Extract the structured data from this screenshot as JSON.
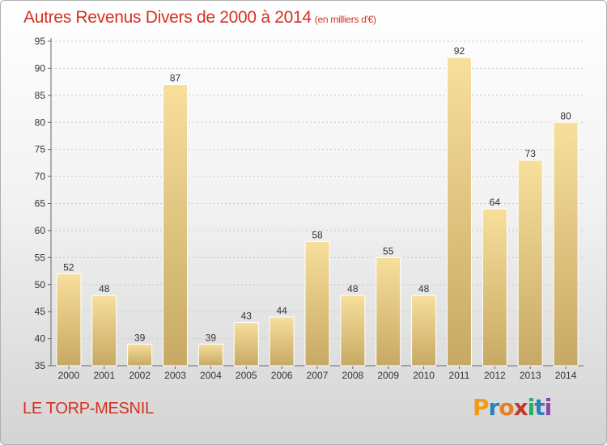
{
  "title": "Autres Revenus Divers de 2000 à 2014",
  "subtitle": "(en milliers d'€)",
  "place": "LE TORP-MESNIL",
  "logo": {
    "text": "Proxiti",
    "letters": [
      {
        "ch": "P",
        "color": "#f39c12"
      },
      {
        "ch": "r",
        "color": "#2980b9"
      },
      {
        "ch": "o",
        "color": "#e67e22"
      },
      {
        "ch": "x",
        "color": "#c0392b"
      },
      {
        "ch": "i",
        "color": "#27ae60"
      },
      {
        "ch": "t",
        "color": "#2980b9"
      },
      {
        "ch": "i",
        "color": "#8e44ad"
      }
    ]
  },
  "colors": {
    "title": "#d7301f",
    "bar_light": "#f6dc98",
    "bar_dark": "#c4a762",
    "grid": "#c8c8c8"
  },
  "chart_data": {
    "type": "bar",
    "categories": [
      "2000",
      "2001",
      "2002",
      "2003",
      "2004",
      "2005",
      "2006",
      "2007",
      "2008",
      "2009",
      "2010",
      "2011",
      "2012",
      "2013",
      "2014"
    ],
    "values": [
      52,
      48,
      39,
      87,
      39,
      43,
      44,
      58,
      48,
      55,
      48,
      92,
      64,
      73,
      80
    ],
    "ylim": [
      35,
      95
    ],
    "yticks": [
      35,
      40,
      45,
      50,
      55,
      60,
      65,
      70,
      75,
      80,
      85,
      90,
      95
    ],
    "grid": true,
    "data_labels": true
  }
}
